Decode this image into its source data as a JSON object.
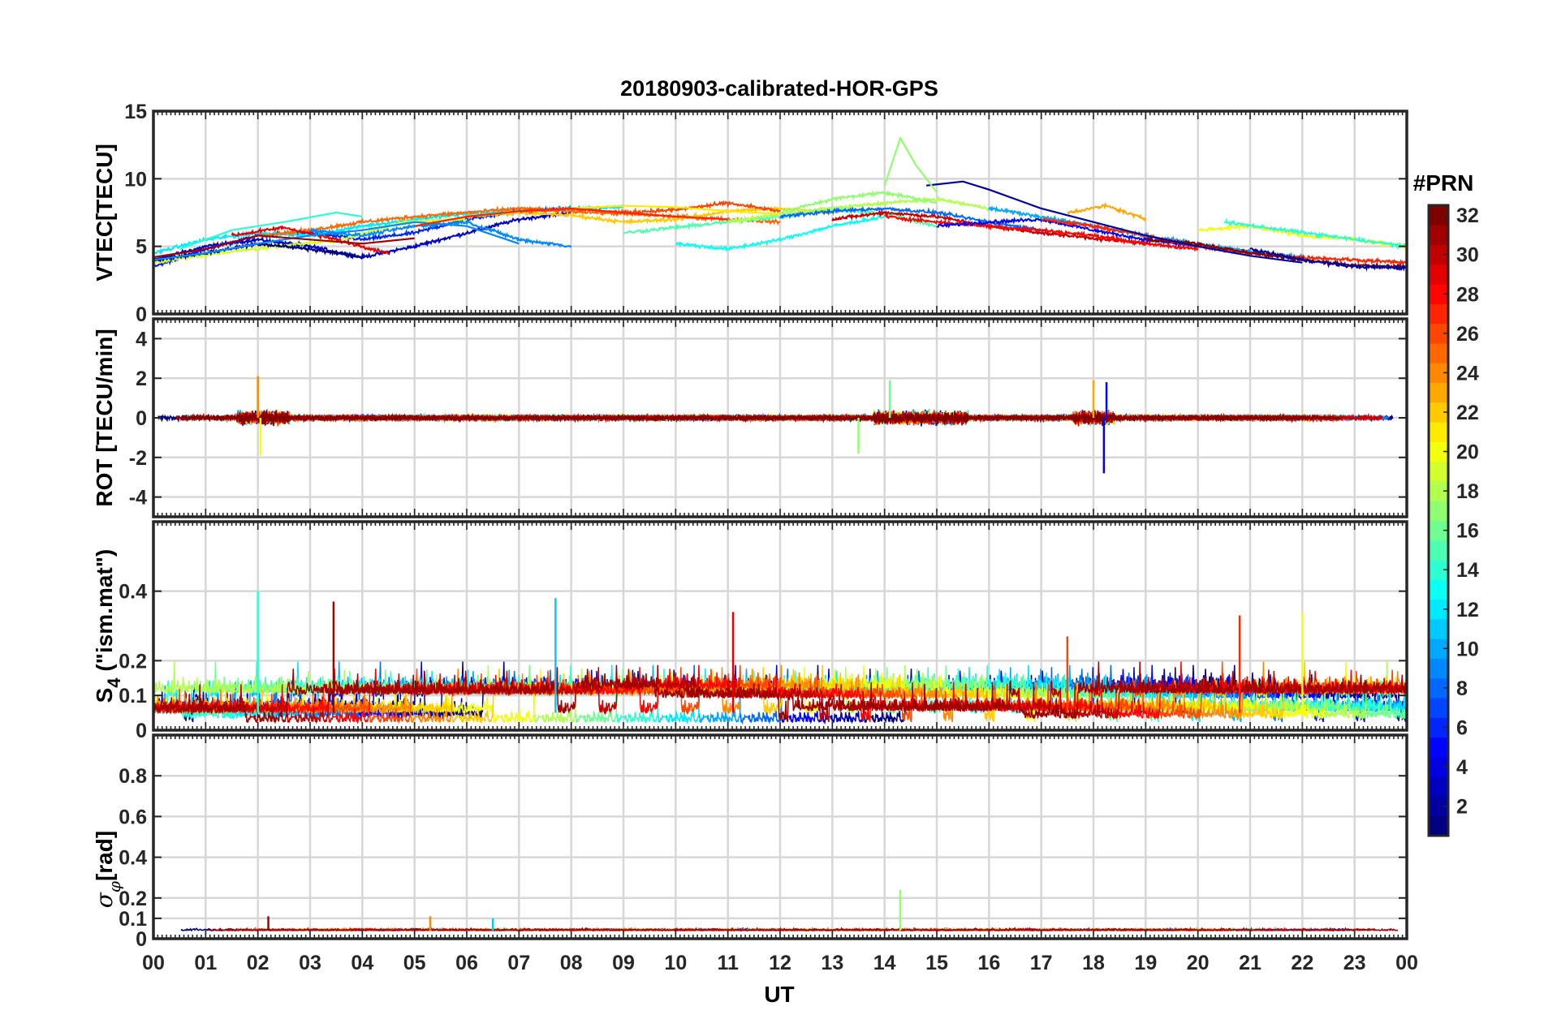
{
  "title": "20180903-calibrated-HOR-GPS",
  "chart_data": [
    {
      "type": "line",
      "panel": "vtec",
      "ylabel": "VTEC[TECU]",
      "ylim": [
        0,
        15
      ],
      "yticks": [
        0,
        5,
        10,
        15
      ],
      "ytick_labels": [
        "0",
        "5",
        "10",
        "15"
      ],
      "series_summary": "multiple PRN series, values ~3-10 TECU, peak ~13 near 14.3 UT",
      "series": [
        {
          "name": "PRN 2",
          "prn": 2,
          "x": [
            14.8,
            15.5,
            16.0,
            17.0,
            18.0,
            19.0,
            20.0,
            21.0,
            22.0
          ],
          "y": [
            9.5,
            9.8,
            9.2,
            7.8,
            6.8,
            5.8,
            5.0,
            4.3,
            3.8
          ]
        },
        {
          "name": "PRN 9",
          "prn": 9,
          "x": [
            0,
            1,
            2,
            3,
            4,
            5,
            6,
            7
          ],
          "y": [
            4.0,
            4.5,
            5.2,
            5.8,
            6.2,
            6.8,
            6.5,
            5.2
          ]
        },
        {
          "name": "PRN 14",
          "prn": 14,
          "x": [
            0.5,
            1.5,
            2.5,
            3.5,
            4.0
          ],
          "y": [
            4.8,
            6.2,
            6.8,
            7.5,
            7.2
          ]
        },
        {
          "name": "PRN 17",
          "prn": 17,
          "x": [
            14.0,
            14.3,
            14.6,
            15.0
          ],
          "y": [
            9.5,
            13.0,
            11.0,
            9.0
          ]
        },
        {
          "name": "PRN 21",
          "prn": 21,
          "x": [
            8,
            9,
            10,
            11,
            12
          ],
          "y": [
            7.8,
            8.0,
            7.9,
            7.6,
            7.4
          ]
        },
        {
          "name": "PRN 27",
          "prn": 27,
          "x": [
            5,
            6,
            7,
            8,
            9,
            10,
            11
          ],
          "y": [
            6.5,
            7.2,
            7.6,
            7.8,
            7.5,
            7.2,
            7.0
          ]
        },
        {
          "name": "PRN 31",
          "prn": 31,
          "x": [
            0,
            1,
            2,
            3,
            4,
            5
          ],
          "y": [
            4.2,
            4.8,
            5.8,
            5.5,
            5.2,
            5.6
          ]
        }
      ]
    },
    {
      "type": "line",
      "panel": "rot",
      "ylabel": "ROT [TECU/min]",
      "ylim": [
        -5,
        5
      ],
      "yticks": [
        -4,
        -2,
        0,
        2,
        4
      ],
      "ytick_labels": [
        "-4",
        "-2",
        "0",
        "2",
        "4"
      ],
      "series_summary": "fluctuations around 0, spikes to +2 near 02 UT and 18 UT, -2.8 near 18.2 UT",
      "spikes": [
        {
          "x": 2.0,
          "y": 2.1,
          "prn": 24
        },
        {
          "x": 2.05,
          "y": -1.9,
          "prn": 20
        },
        {
          "x": 14.1,
          "y": 1.9,
          "prn": 16
        },
        {
          "x": 13.5,
          "y": -1.8,
          "prn": 17
        },
        {
          "x": 18.0,
          "y": 1.9,
          "prn": 23
        },
        {
          "x": 18.2,
          "y": -2.8,
          "prn": 4
        },
        {
          "x": 18.25,
          "y": 1.8,
          "prn": 5
        }
      ]
    },
    {
      "type": "line",
      "panel": "s4",
      "ylabel": "S4 (\"ism.mat\")",
      "ylim": [
        0,
        0.6
      ],
      "yticks": [
        0,
        0.1,
        0.2,
        0.4
      ],
      "ytick_labels": [
        "0",
        "0.1",
        "0.2",
        "0.4"
      ],
      "series_summary": "noisy index, mostly 0.02-0.15, peaks ~0.35-0.4",
      "peaks": [
        {
          "x": 2.0,
          "y": 0.4,
          "prn": 14
        },
        {
          "x": 3.45,
          "y": 0.37,
          "prn": 31
        },
        {
          "x": 7.7,
          "y": 0.38,
          "prn": 11
        },
        {
          "x": 11.1,
          "y": 0.34,
          "prn": 29
        },
        {
          "x": 17.5,
          "y": 0.27,
          "prn": 26
        },
        {
          "x": 20.8,
          "y": 0.33,
          "prn": 27
        },
        {
          "x": 22.0,
          "y": 0.34,
          "prn": 20
        }
      ]
    },
    {
      "type": "line",
      "panel": "sigma_phi",
      "ylabel": "σφ[rad]",
      "ylim": [
        0,
        1
      ],
      "yticks": [
        0,
        0.1,
        0.2,
        0.4,
        0.6,
        0.8
      ],
      "ytick_labels": [
        "0",
        "0.1",
        "0.2",
        "0.4",
        "0.6",
        "0.8"
      ],
      "series_summary": "low values ~0.03-0.06, peak ~0.24 near 14.3 UT",
      "peaks": [
        {
          "x": 14.3,
          "y": 0.24,
          "prn": 17
        },
        {
          "x": 5.3,
          "y": 0.11,
          "prn": 24
        },
        {
          "x": 2.2,
          "y": 0.11,
          "prn": 31
        },
        {
          "x": 6.5,
          "y": 0.1,
          "prn": 11
        }
      ]
    }
  ],
  "xaxis": {
    "label": "UT",
    "xlim": [
      0,
      24
    ],
    "tick_labels": [
      "00",
      "01",
      "02",
      "03",
      "04",
      "05",
      "06",
      "07",
      "08",
      "09",
      "10",
      "11",
      "12",
      "13",
      "14",
      "15",
      "16",
      "17",
      "18",
      "19",
      "20",
      "21",
      "22",
      "23",
      "00"
    ]
  },
  "colorbar": {
    "title": "#PRN",
    "range": [
      1,
      32
    ],
    "tick_values": [
      2,
      4,
      6,
      8,
      10,
      12,
      14,
      16,
      18,
      20,
      22,
      24,
      26,
      28,
      30,
      32
    ],
    "tick_labels": [
      "2",
      "4",
      "6",
      "8",
      "10",
      "12",
      "14",
      "16",
      "18",
      "20",
      "22",
      "24",
      "26",
      "28",
      "30",
      "32"
    ],
    "colormap": "jet"
  }
}
